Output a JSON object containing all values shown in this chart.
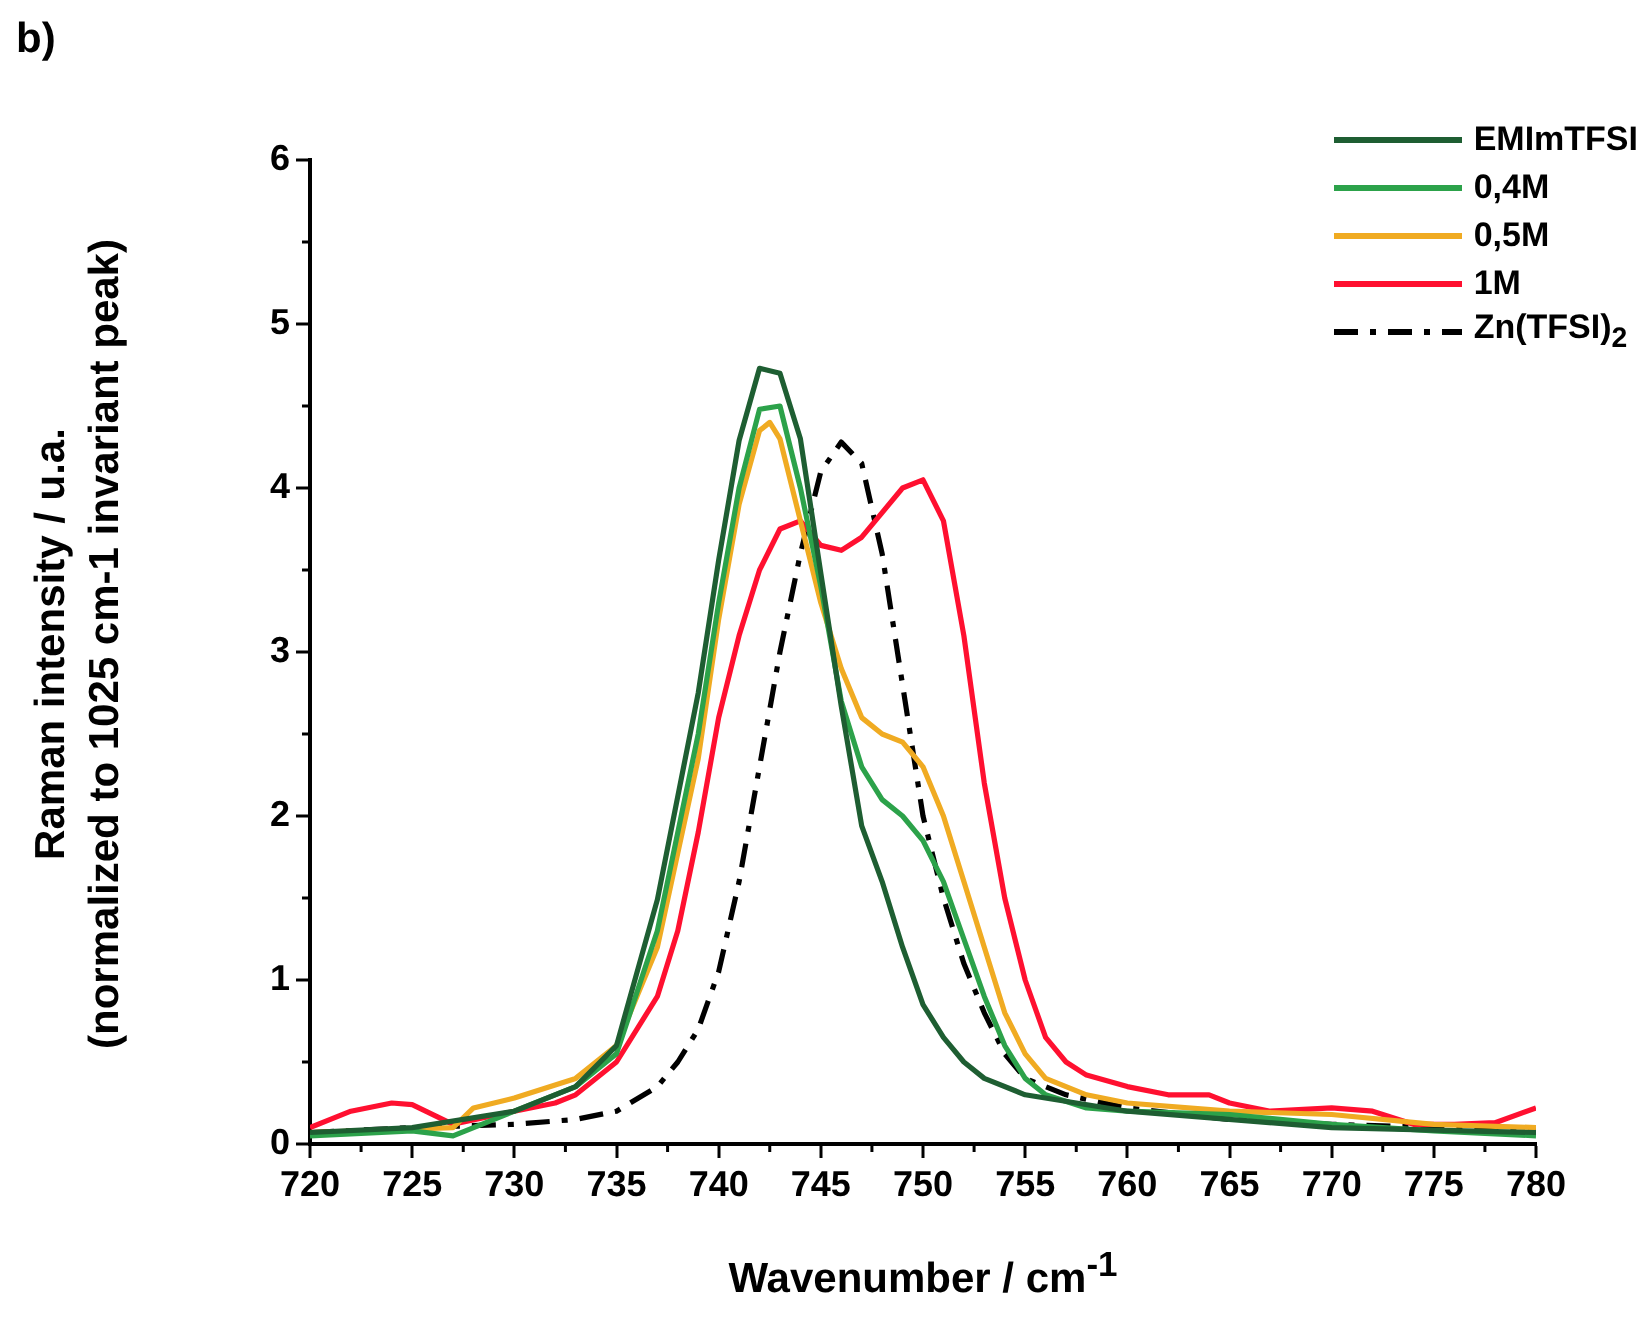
{
  "chart_data": {
    "type": "line",
    "xlabel": "Wavenumber / cm$^{-1}$",
    "ylabel": "Raman intensity / u.a.\n(normalized to 1025 cm-1 invariant peak)",
    "annotations": [
      "b)"
    ],
    "xlim": [
      720,
      780
    ],
    "xticks": [
      720,
      725,
      730,
      735,
      740,
      745,
      750,
      755,
      760,
      765,
      770,
      775,
      780
    ],
    "ylim": [
      0,
      6
    ],
    "yticks": [
      0,
      1,
      2,
      3,
      4,
      5,
      6
    ],
    "grid": false,
    "legend": "top right",
    "marker": "none",
    "series": [
      {
        "name": "EMImTFSI",
        "color": "#1e5e32",
        "line_style": "solid",
        "x": [
          720,
          725,
          730,
          733,
          735,
          737,
          739,
          740,
          741,
          742,
          743,
          744,
          745,
          746,
          747,
          748,
          749,
          750,
          751,
          752,
          753,
          755,
          760,
          770,
          780
        ],
        "values": [
          0.07,
          0.1,
          0.2,
          0.35,
          0.6,
          1.49,
          2.75,
          3.56,
          4.29,
          4.73,
          4.7,
          4.3,
          3.48,
          2.67,
          1.94,
          1.6,
          1.2,
          0.85,
          0.65,
          0.5,
          0.4,
          0.3,
          0.2,
          0.1,
          0.07
        ]
      },
      {
        "name": "0,4M",
        "color": "#2ca24a",
        "line_style": "solid",
        "x": [
          720,
          725,
          727,
          730,
          733,
          735,
          737,
          739,
          740,
          741,
          742,
          743,
          744,
          745,
          746,
          747,
          748,
          749,
          750,
          751,
          752,
          753,
          754,
          755,
          756,
          758,
          760,
          765,
          770,
          775,
          780
        ],
        "values": [
          0.05,
          0.08,
          0.05,
          0.2,
          0.35,
          0.55,
          1.3,
          2.5,
          3.3,
          4.0,
          4.48,
          4.5,
          4.0,
          3.4,
          2.7,
          2.3,
          2.1,
          2.0,
          1.85,
          1.6,
          1.25,
          0.9,
          0.6,
          0.4,
          0.3,
          0.22,
          0.2,
          0.18,
          0.12,
          0.08,
          0.05
        ]
      },
      {
        "name": "0,5M",
        "color": "#f0ab22",
        "line_style": "solid",
        "x": [
          720,
          727,
          728,
          730,
          733,
          735,
          737,
          739,
          740,
          741,
          742,
          742.5,
          743,
          744,
          745,
          746,
          747,
          748,
          749,
          750,
          751,
          752,
          753,
          754,
          755,
          756,
          758,
          760,
          765,
          770,
          775,
          780
        ],
        "values": [
          0.07,
          0.1,
          0.22,
          0.28,
          0.4,
          0.6,
          1.2,
          2.35,
          3.2,
          3.9,
          4.35,
          4.4,
          4.3,
          3.8,
          3.3,
          2.9,
          2.6,
          2.5,
          2.45,
          2.3,
          2.0,
          1.6,
          1.2,
          0.8,
          0.55,
          0.4,
          0.3,
          0.25,
          0.2,
          0.18,
          0.12,
          0.1
        ]
      },
      {
        "name": "1M",
        "color": "#ff1030",
        "line_style": "solid",
        "x": [
          720,
          722,
          724,
          725,
          727,
          730,
          732,
          733,
          735,
          737,
          738,
          739,
          740,
          741,
          742,
          743,
          744,
          745,
          746,
          747,
          748,
          749,
          750,
          751,
          752,
          753,
          754,
          755,
          756,
          757,
          758,
          760,
          762,
          764,
          765,
          767,
          770,
          772,
          774,
          776,
          778,
          780
        ],
        "values": [
          0.1,
          0.2,
          0.25,
          0.24,
          0.12,
          0.2,
          0.25,
          0.3,
          0.5,
          0.9,
          1.3,
          1.9,
          2.6,
          3.1,
          3.5,
          3.75,
          3.8,
          3.65,
          3.62,
          3.7,
          3.85,
          4.0,
          4.05,
          3.8,
          3.1,
          2.2,
          1.5,
          1.0,
          0.65,
          0.5,
          0.42,
          0.35,
          0.3,
          0.3,
          0.25,
          0.2,
          0.22,
          0.2,
          0.12,
          0.12,
          0.13,
          0.22
        ]
      },
      {
        "name": "Zn(TFSI)$_{2}$",
        "color": "#000000",
        "line_style": "dashdot",
        "x": [
          720,
          725,
          730,
          733,
          735,
          737,
          738,
          739,
          740,
          741,
          742,
          743,
          744,
          745,
          746,
          747,
          748,
          749,
          750,
          751,
          752,
          753,
          754,
          755,
          757,
          760,
          765,
          770,
          775,
          780
        ],
        "values": [
          0.07,
          0.1,
          0.12,
          0.15,
          0.2,
          0.35,
          0.5,
          0.7,
          1.05,
          1.6,
          2.3,
          3.0,
          3.6,
          4.1,
          4.28,
          4.15,
          3.6,
          2.8,
          2.0,
          1.5,
          1.1,
          0.8,
          0.55,
          0.4,
          0.3,
          0.22,
          0.15,
          0.12,
          0.1,
          0.08
        ]
      }
    ]
  }
}
